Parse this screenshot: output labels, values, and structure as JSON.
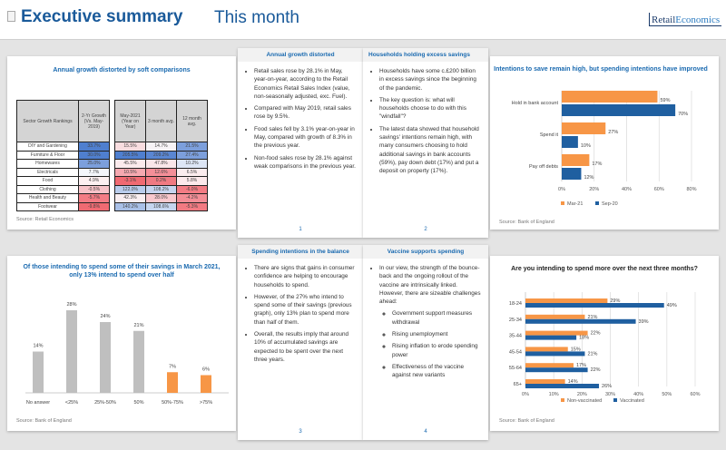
{
  "header": {
    "title": "Executive summary",
    "subtitle": "This month",
    "logo": "RetailEconomics"
  },
  "table_card": {
    "title": "Annual growth distorted by soft comparisons",
    "source": "Source: Retail Economics",
    "headers": [
      "Sector Growth Rankings",
      "2-Yr Growth (Vs. May-2019)",
      "May-2021 (Year on Year)",
      "3 month avg.",
      "12 month avg."
    ],
    "rows": [
      [
        "DIY and Gardening",
        "33.7%",
        "15.5%",
        "14.7%",
        "21.5%"
      ],
      [
        "Furniture & Floor",
        "30.0%",
        "205.5%",
        "209.2%",
        "27.4%"
      ],
      [
        "Homewares",
        "25.0%",
        "45.5%",
        "47.8%",
        "10.2%"
      ],
      [
        "Electricals",
        "7.7%",
        "10.5%",
        "12.6%",
        "6.5%"
      ],
      [
        "Food",
        "4.9%",
        "-3.1%",
        "0.2%",
        "5.8%"
      ],
      [
        "Clothing",
        "-0.5%",
        "122.0%",
        "108.2%",
        "-6.0%"
      ],
      [
        "Health and Beauty",
        "-5.7%",
        "42.3%",
        "28.0%",
        "-4.2%"
      ],
      [
        "Footwear",
        "-9.8%",
        "140.2%",
        "108.6%",
        "-5.3%"
      ]
    ],
    "cell_colors": [
      [
        "#4f7fcf",
        "#f9dde0",
        "#f7f3f6",
        "#7c9fdc"
      ],
      [
        "#4f7fcf",
        "#4f7fcf",
        "#5a86d2",
        "#7c9fdc"
      ],
      [
        "#7c9fdc",
        "#fbeaec",
        "#f9e6e9",
        "#dde6f6"
      ],
      [
        "#f4f6fb",
        "#f5a9b0",
        "#f48f98",
        "#fbecee"
      ],
      [
        "#fdf0f1",
        "#f06a72",
        "#f07a82",
        "#fce9eb"
      ],
      [
        "#f7c3c8",
        "#b9cceb",
        "#c6d5ef",
        "#f37c84"
      ],
      [
        "#f37c84",
        "#f9eef0",
        "#f8c8cd",
        "#f48e96"
      ],
      [
        "#f06a72",
        "#a9c0e7",
        "#c6d5ef",
        "#f37a82"
      ]
    ]
  },
  "pages": [
    {
      "title": "Annual growth distorted",
      "number": "1",
      "bullets": [
        "Retail sales rose by 28.1% in May, year-on-year, according to the Retail Economics Retail Sales Index (value, non-seasonally adjusted, exc. Fuel).",
        "Compared with May 2019, retail sales rose by 9.5%.",
        "Food sales fell by 3.1% year-on-year in May, compared with growth of 8.3% in the previous year.",
        "Non-food sales rose by 28.1% against weak comparisons in the previous year."
      ]
    },
    {
      "title": "Households holding excess savings",
      "number": "2",
      "bullets": [
        "Households have some c.£200 billion in excess savings since the beginning of the pandemic.",
        "The key question is: what will households choose to do with this \"windfall\"?",
        "The latest data showed that household savings' intentions remain high, with many consumers choosing to hold additional savings in bank accounts (59%), pay down debt (17%) and put a deposit on property (17%)."
      ]
    },
    {
      "title": "Spending intentions in the balance",
      "number": "3",
      "bullets": [
        "There are signs that gains in consumer confidence are helping to encourage households to spend.",
        "However, of the 27% who intend to spend some of their savings (previous graph), only 13% plan to spend more than half of them.",
        "Overall, the results imply that around 10% of accumulated savings are expected to be spent over the next three years."
      ]
    },
    {
      "title": "Vaccine supports spending",
      "number": "4",
      "bullets": [
        "In our view, the strength of the bounce-back and the ongoing rollout of the vaccine are intrinsically linked. However, there are sizeable challenges ahead:"
      ],
      "sub_bullets": [
        "Government support measures withdrawal",
        "Rising unemployment",
        "Rising inflation to erode spending power",
        "Effectiveness of the vaccine against new variants"
      ]
    }
  ],
  "chart_data": [
    {
      "type": "bar",
      "orientation": "horizontal",
      "title": "Intentions to save remain high, but spending intentions have improved",
      "source": "Source: Bank of England",
      "categories": [
        "Hold in bank account",
        "Spend it",
        "Pay off debts"
      ],
      "series": [
        {
          "name": "Mar-21",
          "color": "#f79646",
          "values": [
            59,
            27,
            17
          ]
        },
        {
          "name": "Sep-20",
          "color": "#1f5fa0",
          "values": [
            70,
            10,
            12
          ]
        }
      ],
      "xlim": [
        0,
        80
      ],
      "xticks": [
        "0%",
        "20%",
        "40%",
        "60%",
        "80%"
      ],
      "grid": true,
      "legend": "bottom"
    },
    {
      "type": "bar",
      "orientation": "vertical",
      "title": "Of those intending to spend some of their savings in March 2021, only 13% intend to spend over half",
      "source": "Source: Bank of England",
      "categories": [
        "No answer",
        "<25%",
        "25%-50%",
        "50%",
        "50%-75%",
        ">75%"
      ],
      "values": [
        14,
        28,
        24,
        21,
        7,
        6
      ],
      "labels": [
        "14%",
        "28%",
        "24%",
        "21%",
        "7%",
        "6%"
      ],
      "colors": [
        "#bfbfbf",
        "#bfbfbf",
        "#bfbfbf",
        "#bfbfbf",
        "#f79646",
        "#f79646"
      ],
      "grid": false
    },
    {
      "type": "bar",
      "orientation": "horizontal",
      "title": "Are you intending to spend more over the next three months?",
      "source": "Source: Bank of England",
      "categories": [
        "18-24",
        "25-34",
        "35-44",
        "45-54",
        "55-64",
        "65+"
      ],
      "series": [
        {
          "name": "Non-vaccinated",
          "color": "#f79646",
          "values": [
            29,
            21,
            22,
            15,
            17,
            14
          ]
        },
        {
          "name": "Vaccinated",
          "color": "#1f5fa0",
          "values": [
            49,
            39,
            18,
            21,
            22,
            26
          ]
        }
      ],
      "xlim": [
        0,
        60
      ],
      "xticks": [
        "0%",
        "10%",
        "20%",
        "30%",
        "40%",
        "50%",
        "60%"
      ],
      "grid": true,
      "legend": "bottom"
    }
  ]
}
